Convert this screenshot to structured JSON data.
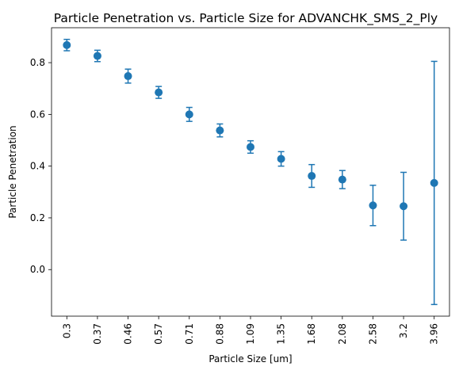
{
  "chart_data": {
    "type": "scatter",
    "title": "Particle Penetration vs. Particle Size for ADVANCHK_SMS_2_Ply",
    "xlabel": "Particle Size [um]",
    "ylabel": "Particle Penetration",
    "categories": [
      "0.3",
      "0.37",
      "0.46",
      "0.57",
      "0.71",
      "0.88",
      "1.09",
      "1.35",
      "1.68",
      "2.08",
      "2.58",
      "3.2",
      "3.96"
    ],
    "values": [
      0.868,
      0.826,
      0.748,
      0.685,
      0.6,
      0.538,
      0.474,
      0.428,
      0.362,
      0.348,
      0.248,
      0.245,
      0.335
    ],
    "errors": [
      0.022,
      0.022,
      0.027,
      0.023,
      0.027,
      0.025,
      0.024,
      0.028,
      0.044,
      0.035,
      0.078,
      0.131,
      0.47
    ],
    "ylim": [
      -0.18,
      0.935
    ],
    "yticks": [
      "0.0",
      "0.2",
      "0.4",
      "0.6",
      "0.8"
    ],
    "ytick_values": [
      0.0,
      0.2,
      0.4,
      0.6,
      0.8
    ],
    "grid": false,
    "legend": "none",
    "color": "#1f77b4"
  }
}
